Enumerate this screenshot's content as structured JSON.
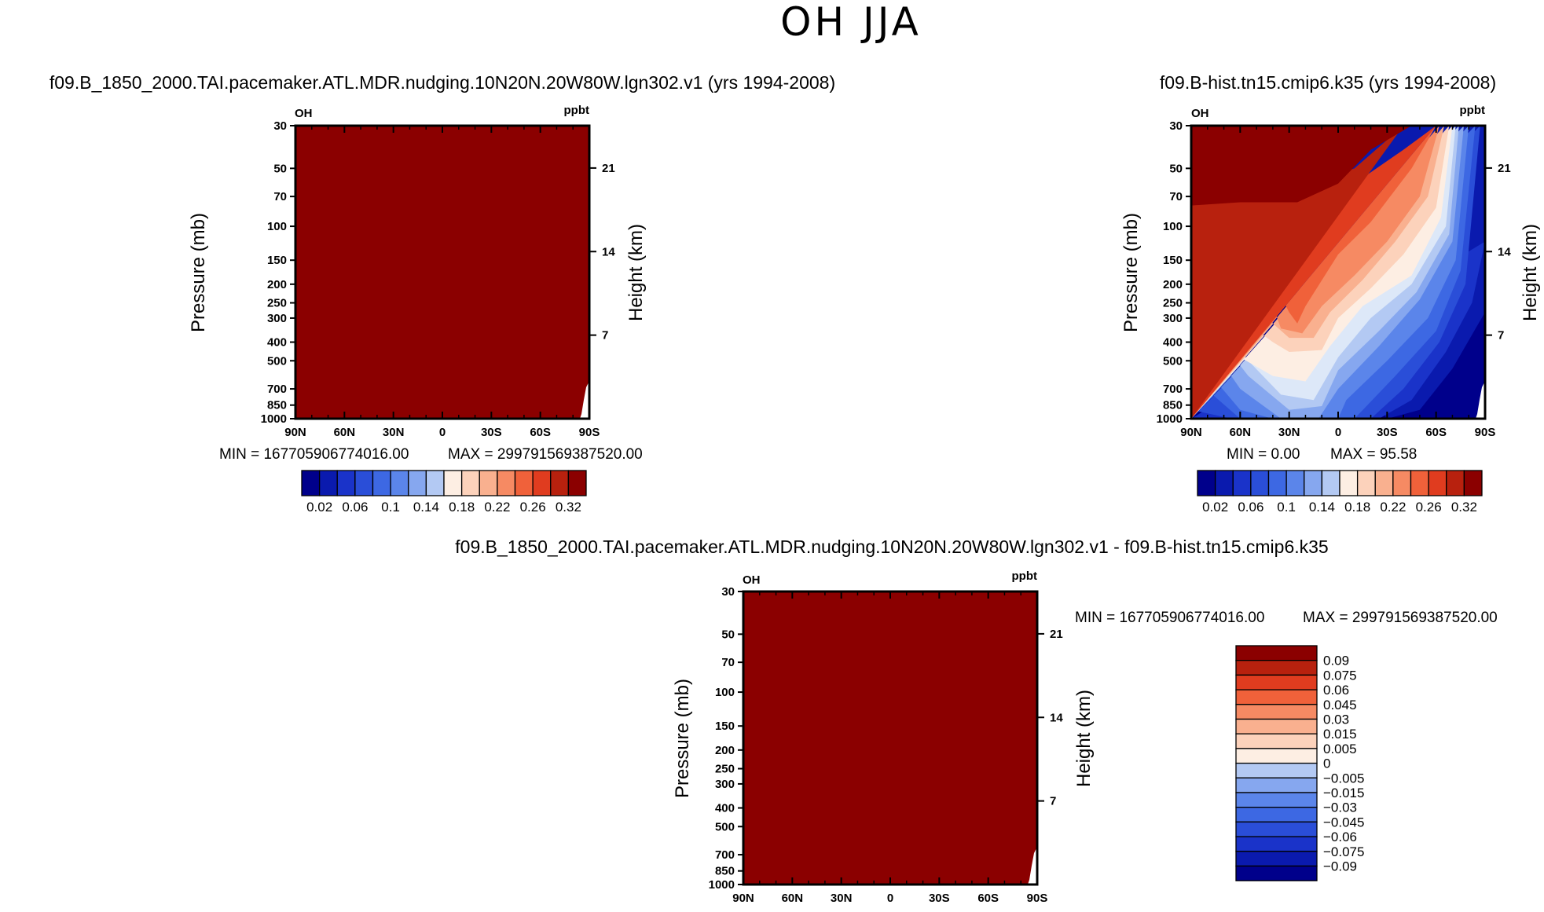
{
  "figure_title": "OH JJA",
  "colors": {
    "diff_fill": "#8b0000",
    "missing": "#ffffff",
    "palette": [
      "#00008b",
      "#0a1aae",
      "#1a33c9",
      "#2a4ed8",
      "#3d68e3",
      "#5b85ea",
      "#86a7ef",
      "#b3c9f3",
      "#dde8f8",
      "#fdeee3",
      "#fcd2bb",
      "#f9b08f",
      "#f68a63",
      "#f0613a",
      "#e03c1f",
      "#b8210e",
      "#8b0000"
    ]
  },
  "chart_data": [
    {
      "type": "heatmap",
      "id": "panel-left",
      "title": "f09.B_1850_2000.TAI.pacemaker.ATL.MDR.nudging.10N20N.20W80W.lgn302.v1 (yrs 1994-2008)",
      "field_label": "OH",
      "units_label": "ppbt",
      "xlabel": "",
      "ylabel": "Pressure (mb)",
      "ylabel_right": "Height (km)",
      "x_ticks": [
        "90N",
        "60N",
        "30N",
        "0",
        "30S",
        "60S",
        "90S"
      ],
      "x_range": [
        90,
        -90
      ],
      "y_ticks": [
        30,
        50,
        70,
        100,
        150,
        200,
        250,
        300,
        400,
        500,
        700,
        850,
        1000
      ],
      "y_range_mb": [
        30,
        1000
      ],
      "height_ticks_km": [
        21,
        14,
        7
      ],
      "min_text": "MIN = 167705906774016.00",
      "max_text": "MAX = 299791569387520.00",
      "field_description": "saturated at top color level everywhere",
      "colorbar_labels": [
        "0.02",
        "0.06",
        "0.1",
        "0.14",
        "0.18",
        "0.22",
        "0.26",
        "0.32"
      ]
    },
    {
      "type": "heatmap",
      "id": "panel-right",
      "title": "f09.B-hist.tn15.cmip6.k35 (yrs 1994-2008)",
      "field_label": "OH",
      "units_label": "ppbt",
      "ylabel": "Pressure (mb)",
      "ylabel_right": "Height (km)",
      "x_ticks": [
        "90N",
        "60N",
        "30N",
        "0",
        "30S",
        "60S",
        "90S"
      ],
      "x_range": [
        90,
        -90
      ],
      "y_ticks": [
        30,
        50,
        70,
        100,
        150,
        200,
        250,
        300,
        400,
        500,
        700,
        850,
        1000
      ],
      "y_range_mb": [
        30,
        1000
      ],
      "height_ticks_km": [
        21,
        14,
        7
      ],
      "min_text": "MIN =     0.00",
      "max_text": "MAX =    95.58",
      "colorbar_labels": [
        "0.02",
        "0.06",
        "0.1",
        "0.14",
        "0.18",
        "0.22",
        "0.26",
        "0.32"
      ],
      "contour_levels": [
        0.02,
        0.06,
        0.1,
        0.14,
        0.18,
        0.22,
        0.26,
        0.32
      ]
    },
    {
      "type": "heatmap",
      "id": "panel-diff",
      "title": "f09.B_1850_2000.TAI.pacemaker.ATL.MDR.nudging.10N20N.20W80W.lgn302.v1  -  f09.B-hist.tn15.cmip6.k35",
      "field_label": "OH",
      "units_label": "ppbt",
      "ylabel": "Pressure (mb)",
      "ylabel_right": "Height (km)",
      "x_ticks": [
        "90N",
        "60N",
        "30N",
        "0",
        "30S",
        "60S",
        "90S"
      ],
      "x_range": [
        90,
        -90
      ],
      "y_ticks": [
        30,
        50,
        70,
        100,
        150,
        200,
        250,
        300,
        400,
        500,
        700,
        850,
        1000
      ],
      "y_range_mb": [
        30,
        1000
      ],
      "height_ticks_km": [
        21,
        14,
        7
      ],
      "min_text": "MIN = 167705906774016.00",
      "max_text": "MAX = 299791569387520.00",
      "colorbar_labels": [
        "0.09",
        "0.075",
        "0.06",
        "0.045",
        "0.03",
        "0.015",
        "0.005",
        "0",
        "-0.005",
        "-0.015",
        "-0.03",
        "-0.045",
        "-0.06",
        "-0.075",
        "-0.09"
      ]
    }
  ]
}
